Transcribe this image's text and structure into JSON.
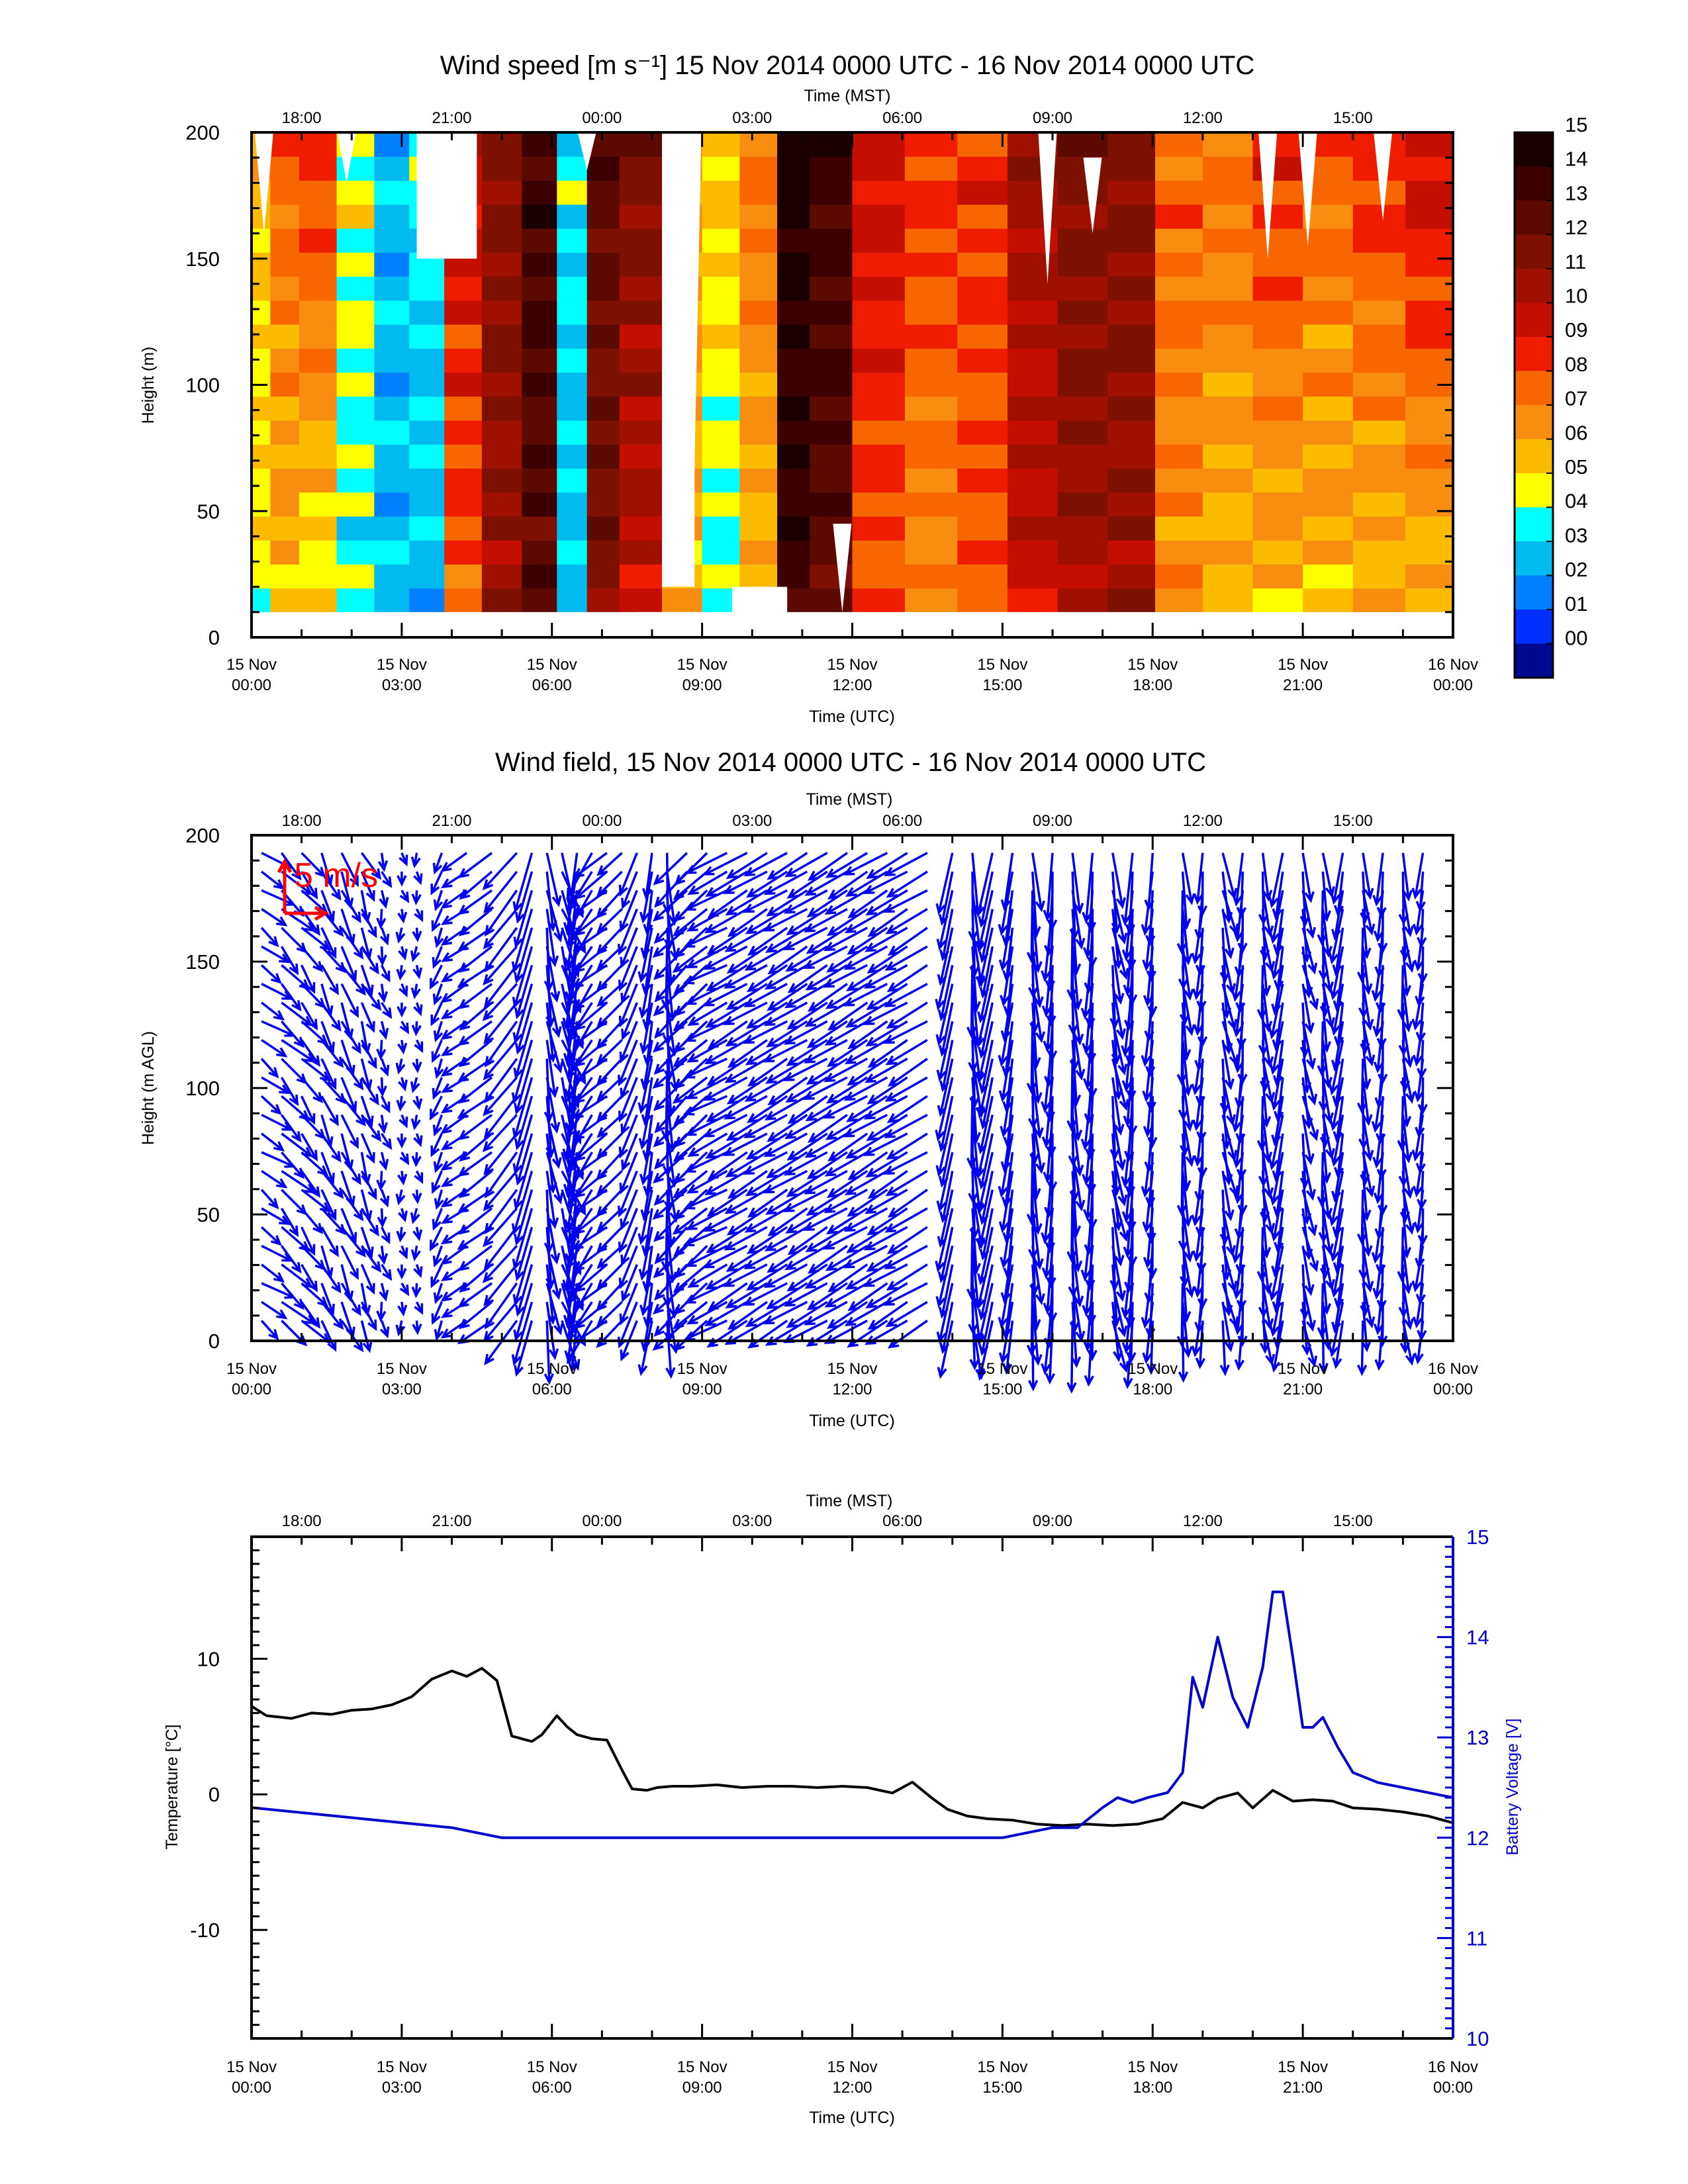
{
  "chart_data": [
    {
      "type": "heatmap",
      "title": "Wind speed [m s⁻¹] 15 Nov 2014 0000 UTC - 16 Nov 2014 0000 UTC",
      "top_axis_label": "Time (MST)",
      "top_ticks": [
        "18:00",
        "21:00",
        "00:00",
        "03:00",
        "06:00",
        "09:00",
        "12:00",
        "15:00"
      ],
      "xlabel": "Time (UTC)",
      "x_ticks": [
        {
          "date": "15 Nov",
          "time": "00:00"
        },
        {
          "date": "15 Nov",
          "time": "03:00"
        },
        {
          "date": "15 Nov",
          "time": "06:00"
        },
        {
          "date": "15 Nov",
          "time": "09:00"
        },
        {
          "date": "15 Nov",
          "time": "12:00"
        },
        {
          "date": "15 Nov",
          "time": "15:00"
        },
        {
          "date": "15 Nov",
          "time": "18:00"
        },
        {
          "date": "15 Nov",
          "time": "21:00"
        },
        {
          "date": "16 Nov",
          "time": "00:00"
        }
      ],
      "ylabel": "Height (m)",
      "y_ticks": [
        "0",
        "50",
        "100",
        "150",
        "200"
      ],
      "xlim_hours_utc": [
        0,
        24
      ],
      "ylim": [
        0,
        200
      ],
      "colorbar": {
        "labels": [
          "15",
          "14",
          "13",
          "12",
          "11",
          "10",
          "09",
          "08",
          "07",
          "06",
          "05",
          "04",
          "03",
          "02",
          "01",
          "00"
        ],
        "colors": [
          "#1a0000",
          "#3d0000",
          "#5c0a00",
          "#7d1000",
          "#a01000",
          "#c40f00",
          "#ef1c00",
          "#f76600",
          "#f98d10",
          "#fcbb00",
          "#ffff00",
          "#00ffff",
          "#00baf0",
          "#0080ff",
          "#0030ff",
          "#000a90"
        ]
      },
      "speed_columns_utc": [
        {
          "t": 0.15,
          "low": 5,
          "high": 6
        },
        {
          "t": 0.6,
          "low": 6,
          "high": 8
        },
        {
          "t": 1.3,
          "low": 5,
          "high": 9
        },
        {
          "t": 2.1,
          "low": 4,
          "high": 5
        },
        {
          "t": 2.8,
          "low": 3,
          "high": 3
        },
        {
          "t": 3.5,
          "low": 3,
          "high": 4
        },
        {
          "t": 4.2,
          "low": 8,
          "high": 10
        },
        {
          "t": 5.0,
          "low": 11,
          "high": 12
        },
        {
          "t": 5.8,
          "low": 13,
          "high": 14
        },
        {
          "t": 6.4,
          "low": 3,
          "high": 4
        },
        {
          "t": 7.0,
          "low": 12,
          "high": 13
        },
        {
          "t": 7.7,
          "low": 10,
          "high": 12
        },
        {
          "t": 8.7,
          "low": 6,
          "high": 7
        },
        {
          "t": 9.3,
          "low": 4,
          "high": 6
        },
        {
          "t": 10.2,
          "low": 6,
          "high": 8
        },
        {
          "t": 10.8,
          "low": 14,
          "high": 15
        },
        {
          "t": 11.5,
          "low": 13,
          "high": 14
        },
        {
          "t": 12.5,
          "low": 8,
          "high": 10
        },
        {
          "t": 13.6,
          "low": 7,
          "high": 9
        },
        {
          "t": 14.6,
          "low": 8,
          "high": 9
        },
        {
          "t": 15.6,
          "low": 10,
          "high": 11
        },
        {
          "t": 16.6,
          "low": 11,
          "high": 12
        },
        {
          "t": 17.6,
          "low": 11,
          "high": 12
        },
        {
          "t": 18.5,
          "low": 7,
          "high": 8
        },
        {
          "t": 19.5,
          "low": 6,
          "high": 8
        },
        {
          "t": 20.5,
          "low": 6,
          "high": 9
        },
        {
          "t": 21.5,
          "low": 6,
          "high": 8
        },
        {
          "t": 22.5,
          "low": 6,
          "high": 9
        },
        {
          "t": 23.6,
          "low": 6,
          "high": 10
        }
      ]
    },
    {
      "type": "scatter",
      "title": "Wind field, 15 Nov 2014 0000 UTC - 16 Nov 2014 0000 UTC",
      "top_axis_label": "Time (MST)",
      "top_ticks": [
        "18:00",
        "21:00",
        "00:00",
        "03:00",
        "06:00",
        "09:00",
        "12:00",
        "15:00"
      ],
      "xlabel": "Time (UTC)",
      "x_ticks": [
        {
          "date": "15 Nov",
          "time": "00:00"
        },
        {
          "date": "15 Nov",
          "time": "03:00"
        },
        {
          "date": "15 Nov",
          "time": "06:00"
        },
        {
          "date": "15 Nov",
          "time": "09:00"
        },
        {
          "date": "15 Nov",
          "time": "12:00"
        },
        {
          "date": "15 Nov",
          "time": "15:00"
        },
        {
          "date": "15 Nov",
          "time": "18:00"
        },
        {
          "date": "15 Nov",
          "time": "21:00"
        },
        {
          "date": "16 Nov",
          "time": "00:00"
        }
      ],
      "ylabel": "Height (m AGL)",
      "y_ticks": [
        "0",
        "50",
        "100",
        "150",
        "200"
      ],
      "ylim": [
        0,
        200
      ],
      "scale_label": "5 m/s",
      "scale_color": "#ff0000",
      "vector_color": "#0000ee",
      "vector_columns_utc": [
        {
          "t": 0.2,
          "u": 3,
          "v": -2
        },
        {
          "t": 0.6,
          "u": 3,
          "v": -3
        },
        {
          "t": 1.0,
          "u": 2.5,
          "v": -3
        },
        {
          "t": 1.4,
          "u": 2,
          "v": -3.5
        },
        {
          "t": 1.8,
          "u": 2,
          "v": -4
        },
        {
          "t": 2.2,
          "u": 1.5,
          "v": -3.5
        },
        {
          "t": 2.6,
          "u": 0.5,
          "v": -2
        },
        {
          "t": 3.0,
          "u": 0.2,
          "v": -1.5
        },
        {
          "t": 3.3,
          "u": 0.1,
          "v": -1.5
        },
        {
          "t": 3.8,
          "u": -1,
          "v": -2.5
        },
        {
          "t": 4.3,
          "u": -3,
          "v": -2
        },
        {
          "t": 4.8,
          "u": -4,
          "v": -3
        },
        {
          "t": 5.3,
          "u": -4,
          "v": -5
        },
        {
          "t": 5.6,
          "u": -2,
          "v": -7
        },
        {
          "t": 5.9,
          "u": 1,
          "v": -7
        },
        {
          "t": 6.2,
          "u": 2,
          "v": -6
        },
        {
          "t": 6.5,
          "u": -1,
          "v": -7
        },
        {
          "t": 6.8,
          "u": -3,
          "v": -5
        },
        {
          "t": 7.1,
          "u": -4,
          "v": -3
        },
        {
          "t": 7.4,
          "u": -3,
          "v": -3
        },
        {
          "t": 7.7,
          "u": -2,
          "v": -5
        },
        {
          "t": 8.0,
          "u": -1,
          "v": -6
        },
        {
          "t": 8.3,
          "u": 0.5,
          "v": -7
        },
        {
          "t": 8.7,
          "u": -4,
          "v": -4
        },
        {
          "t": 9.1,
          "u": -4,
          "v": -3.5
        },
        {
          "t": 9.5,
          "u": -5,
          "v": -2.5
        },
        {
          "t": 9.9,
          "u": -5,
          "v": -3
        },
        {
          "t": 10.3,
          "u": -5,
          "v": -3
        },
        {
          "t": 10.7,
          "u": -5,
          "v": -3
        },
        {
          "t": 11.1,
          "u": -5,
          "v": -3
        },
        {
          "t": 11.5,
          "u": -5,
          "v": -3
        },
        {
          "t": 11.9,
          "u": -5,
          "v": -3
        },
        {
          "t": 12.3,
          "u": -5,
          "v": -3
        },
        {
          "t": 12.7,
          "u": -5,
          "v": -3
        },
        {
          "t": 13.1,
          "u": -5,
          "v": -3
        },
        {
          "t": 13.5,
          "u": -5,
          "v": -3
        },
        {
          "t": 14.0,
          "u": -1.5,
          "v": -7
        },
        {
          "t": 14.4,
          "u": 0.5,
          "v": -8
        },
        {
          "t": 14.8,
          "u": -1.5,
          "v": -7
        },
        {
          "t": 15.2,
          "u": -1,
          "v": -7
        },
        {
          "t": 15.6,
          "u": 0.5,
          "v": -8
        },
        {
          "t": 16.0,
          "u": -0.5,
          "v": -8
        },
        {
          "t": 16.4,
          "u": 0.5,
          "v": -8
        },
        {
          "t": 16.8,
          "u": -0.5,
          "v": -8
        },
        {
          "t": 17.2,
          "u": 1,
          "v": -7
        },
        {
          "t": 17.6,
          "u": -0.5,
          "v": -8
        },
        {
          "t": 18.0,
          "u": -0.5,
          "v": -7
        },
        {
          "t": 18.6,
          "u": 0.5,
          "v": -7
        },
        {
          "t": 19.0,
          "u": -0.5,
          "v": -6
        },
        {
          "t": 19.4,
          "u": 1,
          "v": -6
        },
        {
          "t": 19.8,
          "u": -0.5,
          "v": -6
        },
        {
          "t": 20.2,
          "u": 0.5,
          "v": -6
        },
        {
          "t": 20.6,
          "u": -1,
          "v": -6
        },
        {
          "t": 21.0,
          "u": 1,
          "v": -6
        },
        {
          "t": 21.4,
          "u": 0.5,
          "v": -6
        },
        {
          "t": 21.8,
          "u": -1,
          "v": -6
        },
        {
          "t": 22.2,
          "u": 0.5,
          "v": -6
        },
        {
          "t": 22.6,
          "u": -0.5,
          "v": -6
        },
        {
          "t": 23.0,
          "u": 0.5,
          "v": -6
        },
        {
          "t": 23.4,
          "u": -0.5,
          "v": -5
        }
      ]
    },
    {
      "type": "line",
      "title": "",
      "top_axis_label": "Time (MST)",
      "top_ticks": [
        "18:00",
        "21:00",
        "00:00",
        "03:00",
        "06:00",
        "09:00",
        "12:00",
        "15:00"
      ],
      "xlabel": "Time (UTC)",
      "x_ticks": [
        {
          "date": "15 Nov",
          "time": "00:00"
        },
        {
          "date": "15 Nov",
          "time": "03:00"
        },
        {
          "date": "15 Nov",
          "time": "06:00"
        },
        {
          "date": "15 Nov",
          "time": "09:00"
        },
        {
          "date": "15 Nov",
          "time": "12:00"
        },
        {
          "date": "15 Nov",
          "time": "15:00"
        },
        {
          "date": "15 Nov",
          "time": "18:00"
        },
        {
          "date": "15 Nov",
          "time": "21:00"
        },
        {
          "date": "16 Nov",
          "time": "00:00"
        }
      ],
      "ylabel": "Temperature [°C]",
      "y_ticks": [
        "-10",
        "0",
        "10"
      ],
      "ylim": [
        -18,
        19
      ],
      "ylabel_right": "Battery Voltage [V]",
      "y_ticks_right": [
        "10",
        "11",
        "12",
        "13",
        "14",
        "15"
      ],
      "ylim_right": [
        10,
        15
      ],
      "series": [
        {
          "axis": "left",
          "color": "#000000",
          "x_hours_utc": [
            0,
            0.3,
            0.8,
            1.2,
            1.6,
            2.0,
            2.4,
            2.8,
            3.2,
            3.6,
            4.0,
            4.3,
            4.6,
            4.9,
            5.2,
            5.5,
            5.6,
            5.8,
            6.1,
            6.3,
            6.5,
            6.8,
            7.1,
            7.4,
            7.6,
            7.9,
            8.1,
            8.4,
            8.8,
            9.3,
            9.8,
            10.3,
            10.8,
            11.3,
            11.8,
            12.3,
            12.8,
            13.2,
            13.6,
            13.9,
            14.3,
            14.7,
            15.2,
            15.7,
            16.2,
            16.7,
            17.2,
            17.7,
            18.2,
            18.6,
            19.0,
            19.3,
            19.7,
            20.0,
            20.4,
            20.8,
            21.2,
            21.6,
            22.0,
            22.5,
            23.0,
            23.5,
            24
          ],
          "values": [
            6.5,
            5.8,
            5.6,
            6.0,
            5.9,
            6.2,
            6.3,
            6.6,
            7.2,
            8.5,
            9.1,
            8.7,
            9.3,
            8.4,
            4.3,
            4.0,
            3.9,
            4.4,
            5.8,
            5.0,
            4.4,
            4.1,
            4.0,
            1.8,
            0.4,
            0.3,
            0.5,
            0.6,
            0.6,
            0.7,
            0.5,
            0.6,
            0.6,
            0.5,
            0.6,
            0.5,
            0.1,
            0.9,
            -0.3,
            -1.1,
            -1.6,
            -1.8,
            -1.9,
            -2.2,
            -2.3,
            -2.2,
            -2.3,
            -2.2,
            -1.8,
            -0.6,
            -1.0,
            -0.3,
            0.1,
            -1.0,
            0.3,
            -0.5,
            -0.4,
            -0.5,
            -1.0,
            -1.1,
            -1.3,
            -1.6,
            -2.1
          ]
        },
        {
          "axis": "right",
          "color": "#0000cc",
          "x_hours_utc": [
            0,
            1,
            2,
            3,
            4,
            5,
            6,
            7,
            8,
            9,
            10,
            11,
            12,
            13,
            14,
            15,
            15.5,
            16,
            16.5,
            17.0,
            17.3,
            17.6,
            17.9,
            18.3,
            18.6,
            18.8,
            19.0,
            19.3,
            19.6,
            19.9,
            20.2,
            20.4,
            20.6,
            20.8,
            21.0,
            21.2,
            21.4,
            21.7,
            22.0,
            22.5,
            23.0,
            23.5,
            24
          ],
          "values": [
            12.3,
            12.25,
            12.2,
            12.15,
            12.1,
            12.0,
            12.0,
            12.0,
            12.0,
            12.0,
            12.0,
            12.0,
            12.0,
            12.0,
            12.0,
            12.0,
            12.05,
            12.1,
            12.1,
            12.3,
            12.4,
            12.35,
            12.4,
            12.45,
            12.65,
            13.6,
            13.3,
            14.0,
            13.4,
            13.1,
            13.7,
            14.45,
            14.45,
            13.8,
            13.1,
            13.1,
            13.2,
            12.9,
            12.65,
            12.55,
            12.5,
            12.45,
            12.4
          ]
        }
      ]
    }
  ]
}
